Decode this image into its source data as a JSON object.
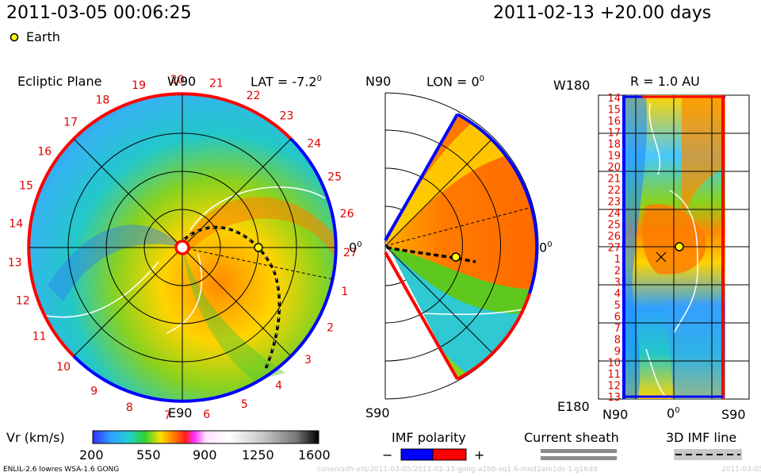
{
  "header": {
    "datetime": "2011-03-05 00:06:25",
    "run_label": "2011-02-13 +20.00 days",
    "legend_earth": "Earth"
  },
  "panels": {
    "ecliptic": {
      "title": "Ecliptic Plane",
      "top_label": "W90",
      "bottom_label": "E90",
      "right_label": "0",
      "lat_label": "LAT = -7.2",
      "lat_sup": "0",
      "carrington_numbers": [
        "19",
        "20",
        "21",
        "22",
        "23",
        "24",
        "25",
        "26",
        "27",
        "1",
        "2",
        "3",
        "4",
        "5",
        "6",
        "7",
        "8",
        "9",
        "10",
        "11",
        "12",
        "13",
        "14",
        "15",
        "16",
        "17",
        "18"
      ]
    },
    "meridional": {
      "top_label": "N90",
      "bottom_label": "S90",
      "right_label": "0",
      "lon_label": "LON = 0",
      "lon_sup": "0"
    },
    "rmap": {
      "top_left_label": "W180",
      "bottom_left_label": "E180",
      "r_label": "R = 1.0 AU",
      "x_left": "N90",
      "x_center": "0",
      "x_right": "S90",
      "row_labels": [
        "14",
        "15",
        "16",
        "17",
        "18",
        "19",
        "20",
        "21",
        "22",
        "23",
        "24",
        "25",
        "26",
        "27",
        "1",
        "2",
        "3",
        "4",
        "5",
        "6",
        "7",
        "8",
        "9",
        "10",
        "11",
        "12",
        "13"
      ]
    }
  },
  "colorbar": {
    "label": "Vr (km/s)",
    "ticks": [
      "200",
      "550",
      "900",
      "1250",
      "1600"
    ],
    "min": 200,
    "max": 1600
  },
  "imf": {
    "title": "IMF polarity",
    "minus": "−",
    "plus": "+",
    "neg_color": "#0000ff",
    "pos_color": "#ff0000"
  },
  "current_sheath": {
    "title": "Current sheath"
  },
  "imf_line": {
    "title": "3D IMF line"
  },
  "footer": {
    "model": "ENLIL-2.6 lowres WSA-1.6 GONG",
    "path": "cone/vsdh-eld/2011-03-05/2011-02-13-gong-a2b8-sq1.6-mod2am1ds-1.g16dd",
    "date": "2011-03-05"
  }
}
